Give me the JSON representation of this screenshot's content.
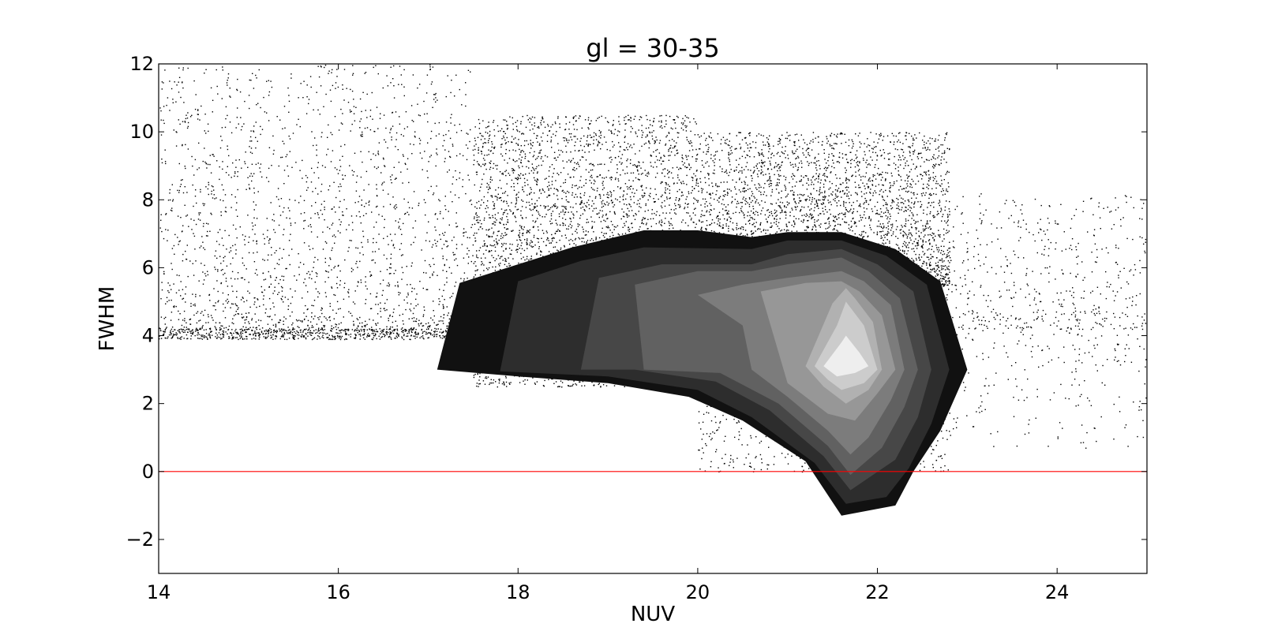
{
  "chart_data": {
    "type": "scatter",
    "title": "gl = 30-35",
    "xlabel": "NUV",
    "ylabel": "FWHM",
    "xlim": [
      14,
      25
    ],
    "ylim": [
      -3,
      12
    ],
    "xticks": [
      14,
      16,
      18,
      20,
      22,
      24
    ],
    "xtick_labels": [
      "14",
      "16",
      "18",
      "20",
      "22",
      "24"
    ],
    "yticks": [
      -2,
      0,
      2,
      4,
      6,
      8,
      10,
      12
    ],
    "ytick_labels": [
      "−2",
      "0",
      "2",
      "4",
      "6",
      "8",
      "10",
      "12"
    ],
    "grid": false,
    "reference_line": {
      "y": 0,
      "color": "#ff0000"
    },
    "scatter_color": "#000000",
    "scatter_regions": [
      {
        "x_range": [
          14.0,
          17.5
        ],
        "y_center": 4.2,
        "y_spread_down": 0.3,
        "y_spread_up": 7.8,
        "density": "medium"
      },
      {
        "x_range": [
          17.5,
          20.0
        ],
        "y_center": 4.5,
        "y_spread_down": 2.0,
        "y_spread_up": 6.0,
        "density": "high"
      },
      {
        "x_range": [
          20.0,
          22.8
        ],
        "y_center": 5.5,
        "y_spread_down": 5.5,
        "y_spread_up": 4.5,
        "density": "high"
      },
      {
        "x_range": [
          22.8,
          25.0
        ],
        "y_center": 4.2,
        "y_spread_down": 3.5,
        "y_spread_up": 4.0,
        "density": "low"
      }
    ],
    "contour_levels": [
      {
        "level": 1,
        "color": "#111111",
        "polygon": [
          [
            17.1,
            3.0
          ],
          [
            17.35,
            5.55
          ],
          [
            18.0,
            6.1
          ],
          [
            18.6,
            6.6
          ],
          [
            19.4,
            7.1
          ],
          [
            20.0,
            7.1
          ],
          [
            20.6,
            6.9
          ],
          [
            21.0,
            7.05
          ],
          [
            21.6,
            7.05
          ],
          [
            22.2,
            6.55
          ],
          [
            22.7,
            5.6
          ],
          [
            23.0,
            3.0
          ],
          [
            22.7,
            1.2
          ],
          [
            22.4,
            0.0
          ],
          [
            22.2,
            -1.0
          ],
          [
            21.6,
            -1.3
          ],
          [
            21.2,
            0.3
          ],
          [
            20.5,
            1.5
          ],
          [
            19.9,
            2.2
          ],
          [
            19.0,
            2.6
          ],
          [
            18.0,
            2.8
          ]
        ]
      },
      {
        "level": 2,
        "color": "#2d2d2d",
        "polygon": [
          [
            17.8,
            2.95
          ],
          [
            18.0,
            5.6
          ],
          [
            18.7,
            6.2
          ],
          [
            19.4,
            6.6
          ],
          [
            20.6,
            6.55
          ],
          [
            21.0,
            6.8
          ],
          [
            21.6,
            6.8
          ],
          [
            22.1,
            6.35
          ],
          [
            22.55,
            5.5
          ],
          [
            22.8,
            3.0
          ],
          [
            22.6,
            1.4
          ],
          [
            22.35,
            0.1
          ],
          [
            22.1,
            -0.75
          ],
          [
            21.65,
            -0.95
          ],
          [
            21.3,
            0.25
          ],
          [
            20.6,
            1.6
          ],
          [
            20.0,
            2.4
          ],
          [
            19.0,
            2.8
          ]
        ]
      },
      {
        "level": 3,
        "color": "#474747",
        "polygon": [
          [
            18.7,
            3.0
          ],
          [
            18.9,
            5.7
          ],
          [
            19.6,
            6.1
          ],
          [
            20.6,
            6.1
          ],
          [
            21.0,
            6.4
          ],
          [
            21.6,
            6.55
          ],
          [
            22.0,
            6.1
          ],
          [
            22.4,
            5.3
          ],
          [
            22.6,
            3.0
          ],
          [
            22.45,
            1.6
          ],
          [
            22.2,
            0.35
          ],
          [
            21.7,
            -0.55
          ],
          [
            21.4,
            0.45
          ],
          [
            20.8,
            1.8
          ],
          [
            20.2,
            2.65
          ],
          [
            19.3,
            3.0
          ]
        ]
      },
      {
        "level": 4,
        "color": "#616161",
        "polygon": [
          [
            19.4,
            3.0
          ],
          [
            19.3,
            5.5
          ],
          [
            20.0,
            5.9
          ],
          [
            20.6,
            5.9
          ],
          [
            21.0,
            6.1
          ],
          [
            21.6,
            6.3
          ],
          [
            21.9,
            5.9
          ],
          [
            22.25,
            5.1
          ],
          [
            22.45,
            3.0
          ],
          [
            22.3,
            1.9
          ],
          [
            22.05,
            0.7
          ],
          [
            21.7,
            -0.1
          ],
          [
            21.45,
            0.75
          ],
          [
            20.9,
            2.0
          ],
          [
            20.25,
            2.9
          ]
        ]
      },
      {
        "level": 5,
        "color": "#7c7c7c",
        "polygon": [
          [
            20.5,
            4.3
          ],
          [
            20.0,
            5.2
          ],
          [
            20.5,
            5.5
          ],
          [
            21.0,
            5.7
          ],
          [
            21.6,
            5.9
          ],
          [
            21.85,
            5.6
          ],
          [
            22.15,
            4.9
          ],
          [
            22.3,
            3.0
          ],
          [
            22.15,
            2.1
          ],
          [
            21.9,
            1.0
          ],
          [
            21.7,
            0.5
          ],
          [
            21.45,
            1.2
          ],
          [
            21.0,
            2.2
          ],
          [
            20.6,
            3.0
          ]
        ]
      },
      {
        "level": 6,
        "color": "#979797",
        "polygon": [
          [
            21.0,
            2.6
          ],
          [
            20.7,
            5.3
          ],
          [
            21.2,
            5.55
          ],
          [
            21.6,
            5.6
          ],
          [
            21.8,
            5.3
          ],
          [
            22.05,
            4.6
          ],
          [
            22.2,
            3.0
          ],
          [
            22.0,
            2.3
          ],
          [
            21.75,
            1.5
          ],
          [
            21.45,
            1.7
          ]
        ]
      },
      {
        "level": 7,
        "color": "#b1b1b1",
        "polygon": [
          [
            21.2,
            3.1
          ],
          [
            21.5,
            4.95
          ],
          [
            21.65,
            5.4
          ],
          [
            21.75,
            5.1
          ],
          [
            21.95,
            4.4
          ],
          [
            22.05,
            3.0
          ],
          [
            21.9,
            2.4
          ],
          [
            21.65,
            2.0
          ],
          [
            21.4,
            2.5
          ]
        ]
      },
      {
        "level": 8,
        "color": "#cccccc",
        "polygon": [
          [
            21.3,
            3.1
          ],
          [
            21.55,
            4.3
          ],
          [
            21.65,
            5.0
          ],
          [
            21.85,
            4.3
          ],
          [
            22.0,
            3.0
          ],
          [
            21.85,
            2.6
          ],
          [
            21.6,
            2.4
          ],
          [
            21.45,
            2.7
          ]
        ]
      },
      {
        "level": 9,
        "color": "#eeeeee",
        "polygon": [
          [
            21.4,
            3.1
          ],
          [
            21.6,
            3.8
          ],
          [
            21.65,
            4.0
          ],
          [
            21.8,
            3.5
          ],
          [
            21.9,
            3.1
          ],
          [
            21.75,
            2.9
          ],
          [
            21.55,
            2.8
          ]
        ]
      }
    ]
  }
}
